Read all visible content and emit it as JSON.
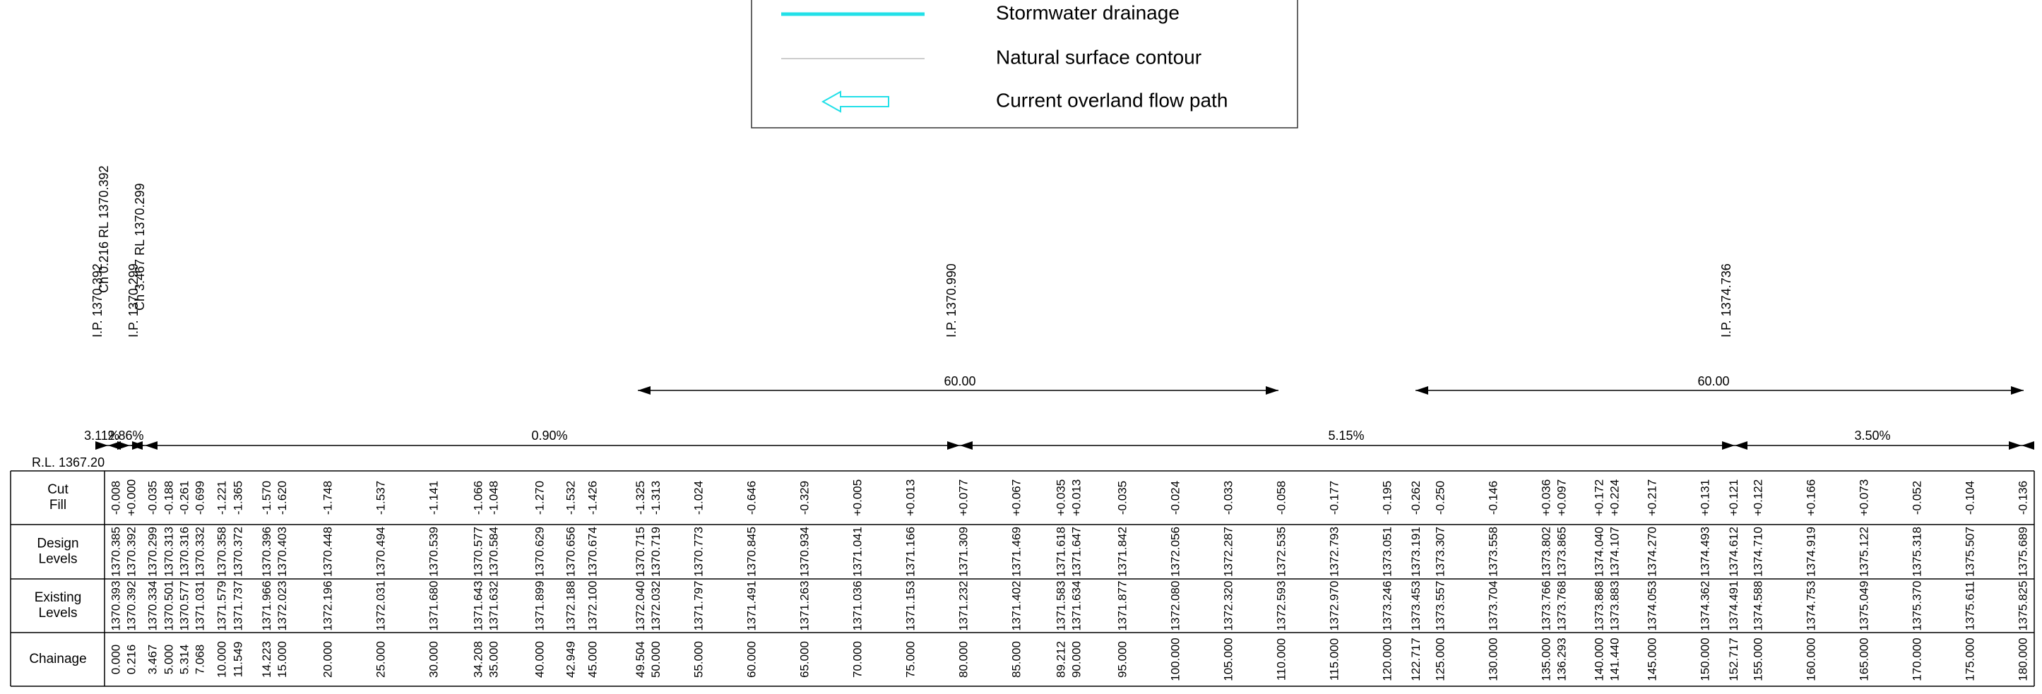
{
  "legend": [
    "Stormwater drainage",
    "Natural surface contour",
    "Current overland flow path"
  ],
  "datum_label": "R.L. 1367.20",
  "row_headers": [
    [
      "Cut",
      "Fill"
    ],
    [
      "Design",
      "Levels"
    ],
    [
      "Existing",
      "Levels"
    ],
    [
      "Chainage"
    ]
  ],
  "grades": [
    "3.11%",
    "2.86%",
    "0.90%",
    "5.15%",
    "3.50%"
  ],
  "vertical_curves": [
    "60.00",
    "60.00"
  ],
  "ip_labels": [
    "I.P. 1370.392",
    "I.P. 1370.299",
    "I.P. 1370.990",
    "I.P. 1374.736"
  ],
  "ch_labels": [
    "Ch 0.216 RL 1370.392",
    "Ch 3.467 RL 1370.299"
  ],
  "columns": [
    {
      "chainage": "0.000",
      "existing": "1370.393",
      "design": "1370.385",
      "cut_fill": "-0.008"
    },
    {
      "chainage": "0.216",
      "existing": "1370.392",
      "design": "1370.392",
      "cut_fill": "+0.000"
    },
    {
      "chainage": "3.467",
      "existing": "1370.334",
      "design": "1370.299",
      "cut_fill": "-0.035"
    },
    {
      "chainage": "5.000",
      "existing": "1370.501",
      "design": "1370.313",
      "cut_fill": "-0.188"
    },
    {
      "chainage": "5.314",
      "existing": "1370.577",
      "design": "1370.316",
      "cut_fill": "-0.261"
    },
    {
      "chainage": "7.068",
      "existing": "1371.031",
      "design": "1370.332",
      "cut_fill": "-0.699"
    },
    {
      "chainage": "10.000",
      "existing": "1371.579",
      "design": "1370.358",
      "cut_fill": "-1.221"
    },
    {
      "chainage": "11.549",
      "existing": "1371.737",
      "design": "1370.372",
      "cut_fill": "-1.365"
    },
    {
      "chainage": "14.223",
      "existing": "1371.966",
      "design": "1370.396",
      "cut_fill": "-1.570"
    },
    {
      "chainage": "15.000",
      "existing": "1372.023",
      "design": "1370.403",
      "cut_fill": "-1.620"
    },
    {
      "chainage": "20.000",
      "existing": "1372.196",
      "design": "1370.448",
      "cut_fill": "-1.748"
    },
    {
      "chainage": "25.000",
      "existing": "1372.031",
      "design": "1370.494",
      "cut_fill": "-1.537"
    },
    {
      "chainage": "30.000",
      "existing": "1371.680",
      "design": "1370.539",
      "cut_fill": "-1.141"
    },
    {
      "chainage": "34.208",
      "existing": "1371.643",
      "design": "1370.577",
      "cut_fill": "-1.066"
    },
    {
      "chainage": "35.000",
      "existing": "1371.632",
      "design": "1370.584",
      "cut_fill": "-1.048"
    },
    {
      "chainage": "40.000",
      "existing": "1371.899",
      "design": "1370.629",
      "cut_fill": "-1.270"
    },
    {
      "chainage": "42.949",
      "existing": "1372.188",
      "design": "1370.656",
      "cut_fill": "-1.532"
    },
    {
      "chainage": "45.000",
      "existing": "1372.100",
      "design": "1370.674",
      "cut_fill": "-1.426"
    },
    {
      "chainage": "49.504",
      "existing": "1372.040",
      "design": "1370.715",
      "cut_fill": "-1.325"
    },
    {
      "chainage": "50.000",
      "existing": "1372.032",
      "design": "1370.719",
      "cut_fill": "-1.313"
    },
    {
      "chainage": "55.000",
      "existing": "1371.797",
      "design": "1370.773",
      "cut_fill": "-1.024"
    },
    {
      "chainage": "60.000",
      "existing": "1371.491",
      "design": "1370.845",
      "cut_fill": "-0.646"
    },
    {
      "chainage": "65.000",
      "existing": "1371.263",
      "design": "1370.934",
      "cut_fill": "-0.329"
    },
    {
      "chainage": "70.000",
      "existing": "1371.036",
      "design": "1371.041",
      "cut_fill": "+0.005"
    },
    {
      "chainage": "75.000",
      "existing": "1371.153",
      "design": "1371.166",
      "cut_fill": "+0.013"
    },
    {
      "chainage": "80.000",
      "existing": "1371.232",
      "design": "1371.309",
      "cut_fill": "+0.077"
    },
    {
      "chainage": "85.000",
      "existing": "1371.402",
      "design": "1371.469",
      "cut_fill": "+0.067"
    },
    {
      "chainage": "89.212",
      "existing": "1371.583",
      "design": "1371.618",
      "cut_fill": "+0.035"
    },
    {
      "chainage": "90.000",
      "existing": "1371.634",
      "design": "1371.647",
      "cut_fill": "+0.013"
    },
    {
      "chainage": "95.000",
      "existing": "1371.877",
      "design": "1371.842",
      "cut_fill": "-0.035"
    },
    {
      "chainage": "100.000",
      "existing": "1372.080",
      "design": "1372.056",
      "cut_fill": "-0.024"
    },
    {
      "chainage": "105.000",
      "existing": "1372.320",
      "design": "1372.287",
      "cut_fill": "-0.033"
    },
    {
      "chainage": "110.000",
      "existing": "1372.593",
      "design": "1372.535",
      "cut_fill": "-0.058"
    },
    {
      "chainage": "115.000",
      "existing": "1372.970",
      "design": "1372.793",
      "cut_fill": "-0.177"
    },
    {
      "chainage": "120.000",
      "existing": "1373.246",
      "design": "1373.051",
      "cut_fill": "-0.195"
    },
    {
      "chainage": "122.717",
      "existing": "1373.453",
      "design": "1373.191",
      "cut_fill": "-0.262"
    },
    {
      "chainage": "125.000",
      "existing": "1373.557",
      "design": "1373.307",
      "cut_fill": "-0.250"
    },
    {
      "chainage": "130.000",
      "existing": "1373.704",
      "design": "1373.558",
      "cut_fill": "-0.146"
    },
    {
      "chainage": "135.000",
      "existing": "1373.766",
      "design": "1373.802",
      "cut_fill": "+0.036"
    },
    {
      "chainage": "136.293",
      "existing": "1373.768",
      "design": "1373.865",
      "cut_fill": "+0.097"
    },
    {
      "chainage": "140.000",
      "existing": "1373.868",
      "design": "1374.040",
      "cut_fill": "+0.172"
    },
    {
      "chainage": "141.440",
      "existing": "1373.883",
      "design": "1374.107",
      "cut_fill": "+0.224"
    },
    {
      "chainage": "145.000",
      "existing": "1374.053",
      "design": "1374.270",
      "cut_fill": "+0.217"
    },
    {
      "chainage": "150.000",
      "existing": "1374.362",
      "design": "1374.493",
      "cut_fill": "+0.131"
    },
    {
      "chainage": "152.717",
      "existing": "1374.491",
      "design": "1374.612",
      "cut_fill": "+0.121"
    },
    {
      "chainage": "155.000",
      "existing": "1374.588",
      "design": "1374.710",
      "cut_fill": "+0.122"
    },
    {
      "chainage": "160.000",
      "existing": "1374.753",
      "design": "1374.919",
      "cut_fill": "+0.166"
    },
    {
      "chainage": "165.000",
      "existing": "1375.049",
      "design": "1375.122",
      "cut_fill": "+0.073"
    },
    {
      "chainage": "170.000",
      "existing": "1375.370",
      "design": "1375.318",
      "cut_fill": "-0.052"
    },
    {
      "chainage": "175.000",
      "existing": "1375.611",
      "design": "1375.507",
      "cut_fill": "-0.104"
    },
    {
      "chainage": "180.000",
      "existing": "1375.825",
      "design": "1375.689",
      "cut_fill": "-0.136"
    }
  ]
}
